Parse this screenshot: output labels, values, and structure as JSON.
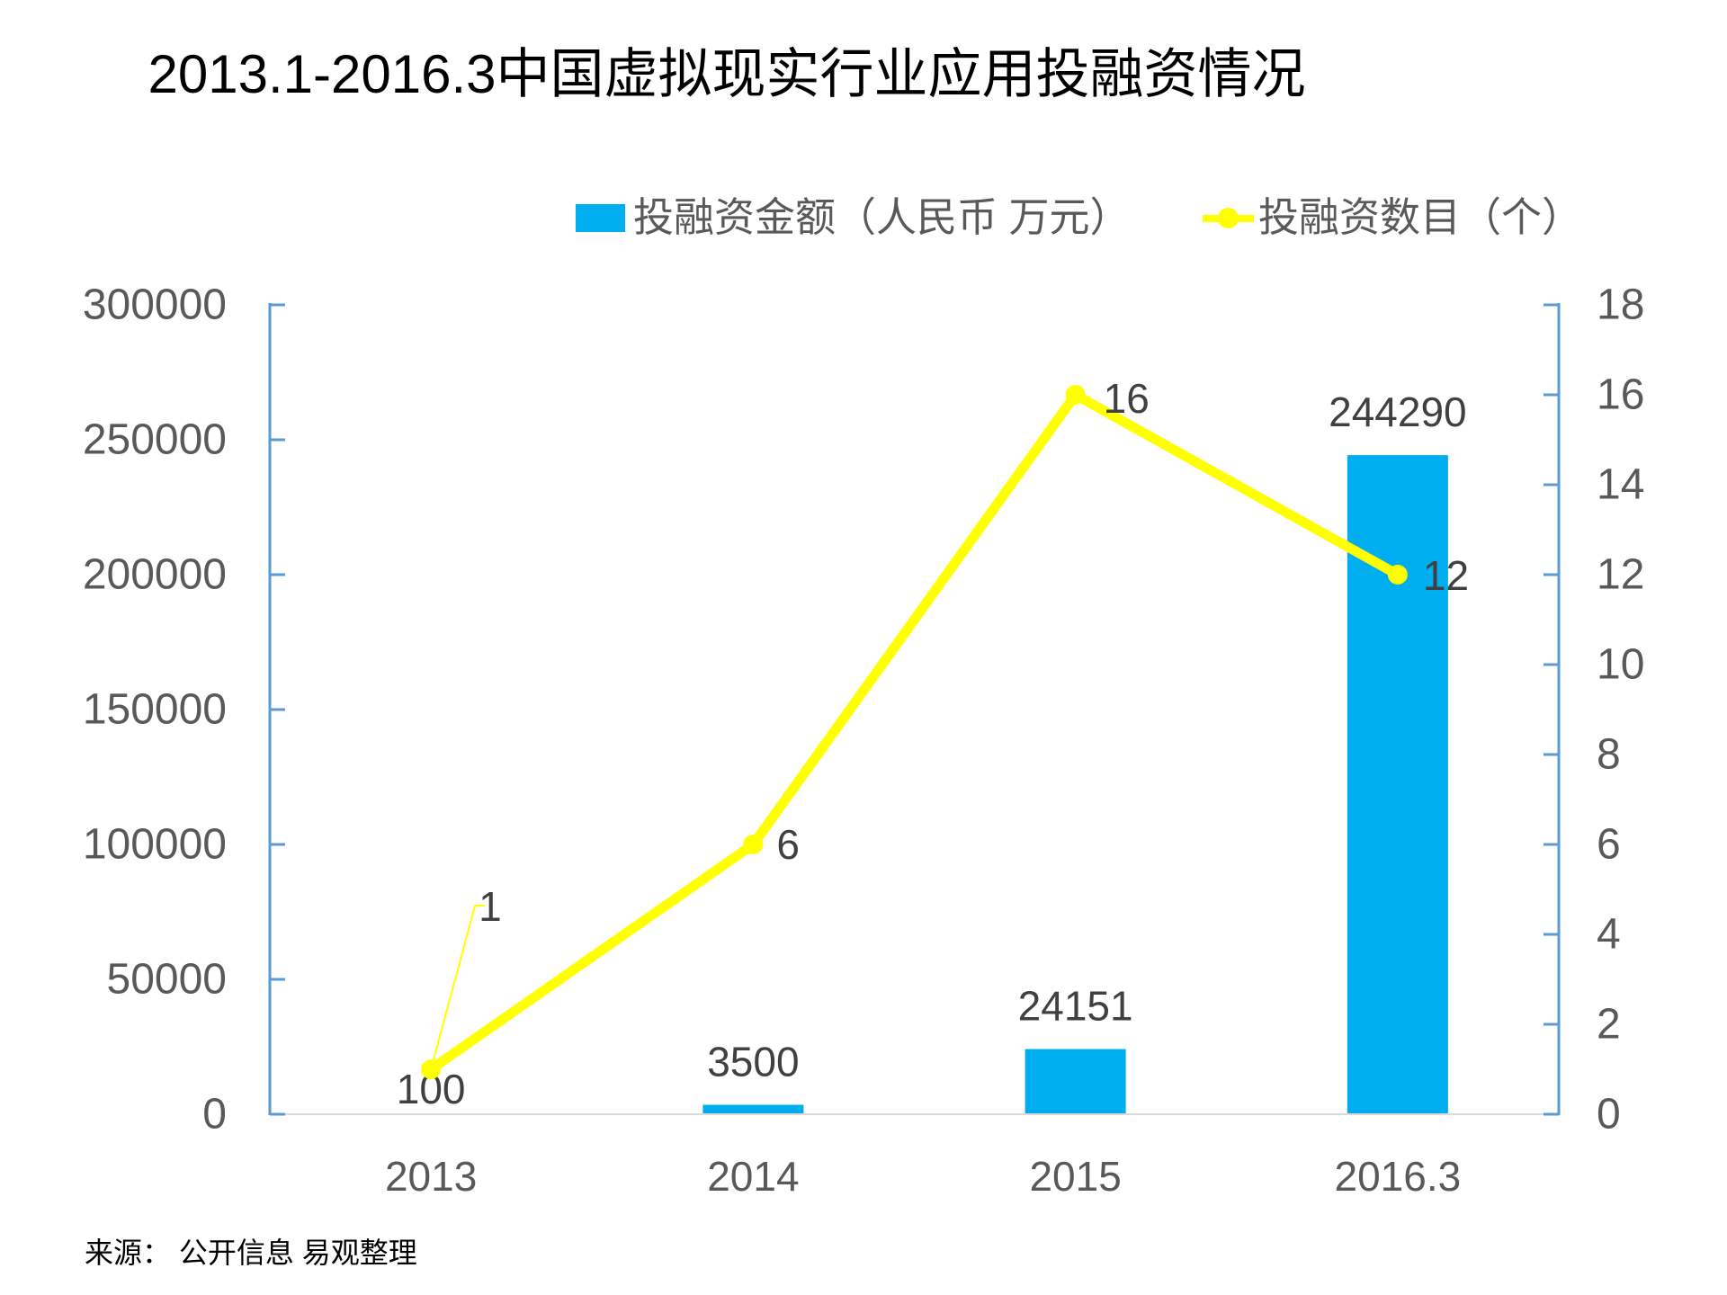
{
  "title": "2013.1-2016.3中国虚拟现实行业应用投融资情况",
  "source_note": "来源： 公开信息 易观整理",
  "colors": {
    "bar": "#00AEEF",
    "line": "#FFFF00",
    "axis_line": "#5B9BD5",
    "baseline": "#D9D9D9",
    "tick_label": "#595959",
    "data_label": "#404040",
    "title": "#000000"
  },
  "chart_data": {
    "type": "combo bar+line, dual axis",
    "categories": [
      "2013",
      "2014",
      "2015",
      "2016.3"
    ],
    "series": [
      {
        "name": "投融资金额（人民币 万元）",
        "type": "bar",
        "axis": "left",
        "color": "#00AEEF",
        "values": [
          100,
          3500,
          24151,
          244290
        ],
        "labels": [
          "100",
          "3500",
          "24151",
          "244290"
        ]
      },
      {
        "name": "投融资数目（个）",
        "type": "line",
        "axis": "right",
        "color": "#FFFF00",
        "values": [
          1,
          6,
          16,
          12
        ],
        "labels": [
          "1",
          "6",
          "16",
          "12"
        ]
      }
    ],
    "left_axis": {
      "min": 0,
      "max": 300000,
      "step": 50000,
      "tick_labels": [
        "0",
        "50000",
        "100000",
        "150000",
        "200000",
        "250000",
        "300000"
      ]
    },
    "right_axis": {
      "min": 0,
      "max": 18,
      "step": 2,
      "tick_labels": [
        "0",
        "2",
        "4",
        "6",
        "8",
        "10",
        "12",
        "14",
        "16",
        "18"
      ]
    },
    "legend_position": "top",
    "grid": "zero-baseline only"
  }
}
